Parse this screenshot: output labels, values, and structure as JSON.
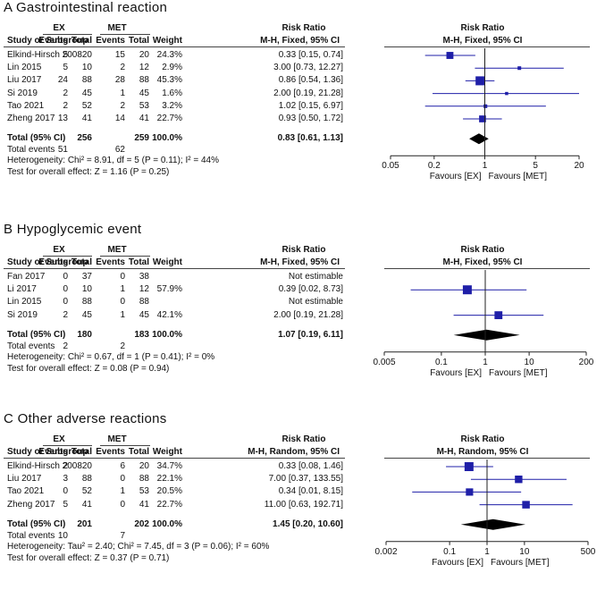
{
  "colors": {
    "marker": "#1f1fa8",
    "diamond": "#000000",
    "line": "#1f1fa8"
  },
  "chart_data": [
    {
      "type": "forest",
      "title": "A Gastrointestinal reaction",
      "group1": "EX",
      "group2": "MET",
      "headers": {
        "study": "Study or Subgroup",
        "events": "Events",
        "total": "Total",
        "weight": "Weight",
        "rr": "Risk Ratio",
        "method": "M-H, Fixed, 95% CI"
      },
      "rows": [
        {
          "study": "Elkind-Hirsch 2008",
          "e1": "5",
          "t1": "20",
          "e2": "15",
          "t2": "20",
          "weight": "24.3%",
          "ci": "0.33 [0.15, 0.74]",
          "rr": 0.33,
          "lo": 0.15,
          "hi": 0.74,
          "w": 24.3
        },
        {
          "study": "Lin 2015",
          "e1": "5",
          "t1": "10",
          "e2": "2",
          "t2": "12",
          "weight": "2.9%",
          "ci": "3.00 [0.73, 12.27]",
          "rr": 3.0,
          "lo": 0.73,
          "hi": 12.27,
          "w": 2.9
        },
        {
          "study": "Liu 2017",
          "e1": "24",
          "t1": "88",
          "e2": "28",
          "t2": "88",
          "weight": "45.3%",
          "ci": "0.86 [0.54, 1.36]",
          "rr": 0.86,
          "lo": 0.54,
          "hi": 1.36,
          "w": 45.3
        },
        {
          "study": "Si 2019",
          "e1": "2",
          "t1": "45",
          "e2": "1",
          "t2": "45",
          "weight": "1.6%",
          "ci": "2.00 [0.19, 21.28]",
          "rr": 2.0,
          "lo": 0.19,
          "hi": 21.28,
          "w": 1.6
        },
        {
          "study": "Tao 2021",
          "e1": "2",
          "t1": "52",
          "e2": "2",
          "t2": "53",
          "weight": "3.2%",
          "ci": "1.02 [0.15, 6.97]",
          "rr": 1.02,
          "lo": 0.15,
          "hi": 6.97,
          "w": 3.2
        },
        {
          "study": "Zheng 2017",
          "e1": "13",
          "t1": "41",
          "e2": "14",
          "t2": "41",
          "weight": "22.7%",
          "ci": "0.93 [0.50, 1.72]",
          "rr": 0.93,
          "lo": 0.5,
          "hi": 1.72,
          "w": 22.7
        }
      ],
      "total": {
        "label": "Total (95% CI)",
        "t1": "256",
        "t2": "259",
        "weight": "100.0%",
        "ci": "0.83 [0.61, 1.13]",
        "rr": 0.83,
        "lo": 0.61,
        "hi": 1.13
      },
      "total_events": {
        "label": "Total events",
        "e1": "51",
        "e2": "62"
      },
      "heterogeneity": "Heterogeneity: Chi² = 8.91, df = 5 (P = 0.11); I² = 44%",
      "overall": "Test for overall effect: Z = 1.16 (P = 0.25)",
      "axis": {
        "min": 0.05,
        "max": 20,
        "ticks": [
          0.05,
          0.2,
          1,
          5,
          20
        ],
        "tick_labels": [
          "0.05",
          "0.2",
          "1",
          "5",
          "20"
        ],
        "favours_left": "Favours [EX]",
        "favours_right": "Favours [MET]"
      }
    },
    {
      "type": "forest",
      "title": "B Hypoglycemic event",
      "group1": "EX",
      "group2": "MET",
      "headers": {
        "study": "Study or Subgroup",
        "events": "Events",
        "total": "Total",
        "weight": "Weight",
        "rr": "Risk Ratio",
        "method": "M-H, Fixed, 95% CI"
      },
      "rows": [
        {
          "study": "Fan 2017",
          "e1": "0",
          "t1": "37",
          "e2": "0",
          "t2": "38",
          "weight": "",
          "ci": "Not estimable",
          "rr": null,
          "lo": null,
          "hi": null,
          "w": 0
        },
        {
          "study": "Li 2017",
          "e1": "0",
          "t1": "10",
          "e2": "1",
          "t2": "12",
          "weight": "57.9%",
          "ci": "0.39 [0.02, 8.73]",
          "rr": 0.39,
          "lo": 0.02,
          "hi": 8.73,
          "w": 57.9
        },
        {
          "study": "Lin 2015",
          "e1": "0",
          "t1": "88",
          "e2": "0",
          "t2": "88",
          "weight": "",
          "ci": "Not estimable",
          "rr": null,
          "lo": null,
          "hi": null,
          "w": 0
        },
        {
          "study": "Si 2019",
          "e1": "2",
          "t1": "45",
          "e2": "1",
          "t2": "45",
          "weight": "42.1%",
          "ci": "2.00 [0.19, 21.28]",
          "rr": 2.0,
          "lo": 0.19,
          "hi": 21.28,
          "w": 42.1
        }
      ],
      "total": {
        "label": "Total (95% CI)",
        "t1": "180",
        "t2": "183",
        "weight": "100.0%",
        "ci": "1.07 [0.19, 6.11]",
        "rr": 1.07,
        "lo": 0.19,
        "hi": 6.11
      },
      "total_events": {
        "label": "Total events",
        "e1": "2",
        "e2": "2"
      },
      "heterogeneity": "Heterogeneity: Chi² = 0.67, df = 1 (P = 0.41); I² = 0%",
      "overall": "Test for overall effect: Z = 0.08 (P = 0.94)",
      "axis": {
        "min": 0.005,
        "max": 200,
        "ticks": [
          0.005,
          0.1,
          1,
          10,
          200
        ],
        "tick_labels": [
          "0.005",
          "0.1",
          "1",
          "10",
          "200"
        ],
        "favours_left": "Favours [EX]",
        "favours_right": "Favours [MET]"
      }
    },
    {
      "type": "forest",
      "title": "C Other adverse reactions",
      "group1": "EX",
      "group2": "MET",
      "headers": {
        "study": "Study or Subgroup",
        "events": "Events",
        "total": "Total",
        "weight": "Weight",
        "rr": "Risk Ratio",
        "method": "M-H, Random, 95% CI"
      },
      "rows": [
        {
          "study": "Elkind-Hirsch 2008",
          "e1": "2",
          "t1": "20",
          "e2": "6",
          "t2": "20",
          "weight": "34.7%",
          "ci": "0.33 [0.08, 1.46]",
          "rr": 0.33,
          "lo": 0.08,
          "hi": 1.46,
          "w": 34.7
        },
        {
          "study": "Liu 2017",
          "e1": "3",
          "t1": "88",
          "e2": "0",
          "t2": "88",
          "weight": "22.1%",
          "ci": "7.00 [0.37, 133.55]",
          "rr": 7.0,
          "lo": 0.37,
          "hi": 133.55,
          "w": 22.1
        },
        {
          "study": "Tao 2021",
          "e1": "0",
          "t1": "52",
          "e2": "1",
          "t2": "53",
          "weight": "20.5%",
          "ci": "0.34 [0.01, 8.15]",
          "rr": 0.34,
          "lo": 0.01,
          "hi": 8.15,
          "w": 20.5
        },
        {
          "study": "Zheng 2017",
          "e1": "5",
          "t1": "41",
          "e2": "0",
          "t2": "41",
          "weight": "22.7%",
          "ci": "11.00 [0.63, 192.71]",
          "rr": 11.0,
          "lo": 0.63,
          "hi": 192.71,
          "w": 22.7
        }
      ],
      "total": {
        "label": "Total (95% CI)",
        "t1": "201",
        "t2": "202",
        "weight": "100.0%",
        "ci": "1.45 [0.20, 10.60]",
        "rr": 1.45,
        "lo": 0.2,
        "hi": 10.6
      },
      "total_events": {
        "label": "Total events",
        "e1": "10",
        "e2": "7"
      },
      "heterogeneity": "Heterogeneity: Tau² = 2.40; Chi² = 7.45, df = 3 (P = 0.06); I² = 60%",
      "overall": "Test for overall effect: Z = 0.37 (P = 0.71)",
      "axis": {
        "min": 0.002,
        "max": 500,
        "ticks": [
          0.002,
          0.1,
          1,
          10,
          500
        ],
        "tick_labels": [
          "0.002",
          "0.1",
          "1",
          "10",
          "500"
        ],
        "favours_left": "Favours [EX]",
        "favours_right": "Favours [MET]"
      }
    }
  ]
}
